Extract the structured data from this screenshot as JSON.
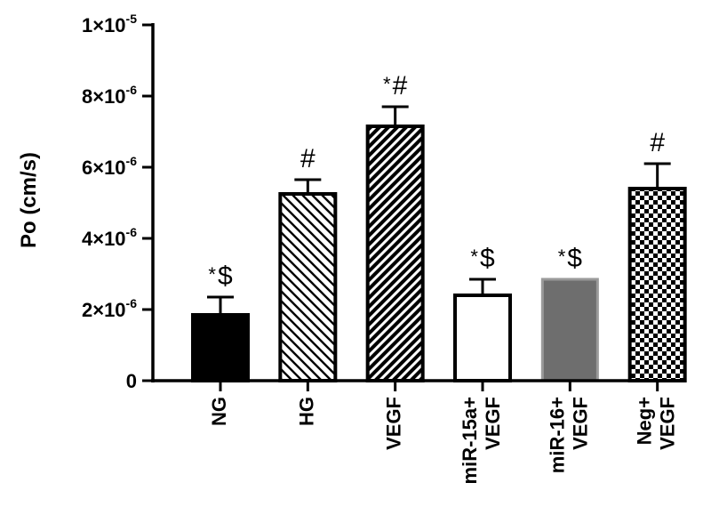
{
  "chart_data": {
    "type": "bar",
    "title": "",
    "xlabel": "",
    "ylabel": "Po (cm/s)",
    "ylim": [
      0,
      1e-05
    ],
    "y_ticks": [
      {
        "value": 0,
        "mantissa": "0",
        "exp": ""
      },
      {
        "value": 2e-06,
        "mantissa": "2×10",
        "exp": "-6"
      },
      {
        "value": 4e-06,
        "mantissa": "4×10",
        "exp": "-6"
      },
      {
        "value": 6e-06,
        "mantissa": "6×10",
        "exp": "-6"
      },
      {
        "value": 8e-06,
        "mantissa": "8×10",
        "exp": "-6"
      },
      {
        "value": 1e-05,
        "mantissa": "1×10",
        "exp": "-5"
      }
    ],
    "categories": [
      {
        "lines": [
          "NG"
        ]
      },
      {
        "lines": [
          "HG"
        ]
      },
      {
        "lines": [
          "VEGF"
        ]
      },
      {
        "lines": [
          "miR-15a+",
          "VEGF"
        ]
      },
      {
        "lines": [
          "miR-16+",
          "VEGF"
        ]
      },
      {
        "lines": [
          "Neg+",
          "VEGF"
        ]
      }
    ],
    "values": [
      1.85e-06,
      5.25e-06,
      7.15e-06,
      2.4e-06,
      2.85e-06,
      5.4e-06
    ],
    "errors": [
      5e-07,
      4e-07,
      5.5e-07,
      4.5e-07,
      0.0,
      7e-07
    ],
    "fills": [
      "solid-black",
      "diagonal-hatch-backslash",
      "diagonal-hatch-slash",
      "white",
      "solid-gray",
      "checkerboard"
    ],
    "annotations": [
      "*$",
      "#",
      "*#",
      "*$",
      "*$",
      "#"
    ],
    "colors": {
      "black": "#000000",
      "gray": "#6e6e6e",
      "gray_border": "#9a9a9a",
      "white": "#ffffff"
    },
    "grid": false,
    "legend": "none"
  }
}
